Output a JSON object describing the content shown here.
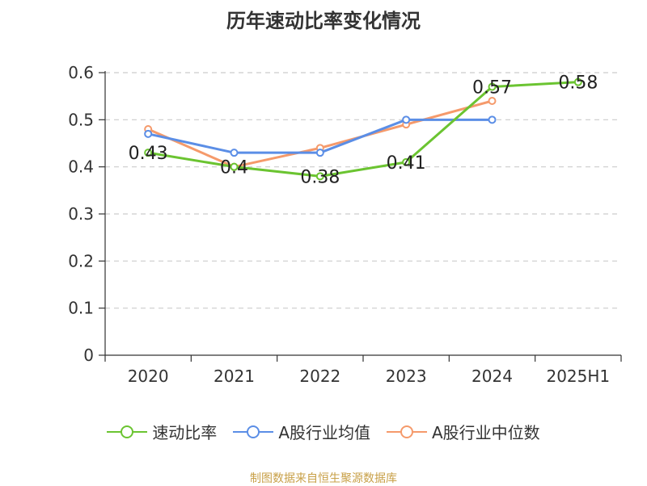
{
  "chart_data": {
    "type": "line",
    "title": "历年速动比率变化情况",
    "categories": [
      "2020",
      "2021",
      "2022",
      "2023",
      "2024",
      "2025H1"
    ],
    "ylim": [
      0,
      0.6
    ],
    "yticks": [
      "0",
      "0.1",
      "0.2",
      "0.3",
      "0.4",
      "0.5",
      "0.6"
    ],
    "grid": true,
    "legend_position": "bottom",
    "series": [
      {
        "name": "速动比率",
        "color": "#6bc431",
        "values": [
          0.43,
          0.4,
          0.38,
          0.41,
          0.57,
          0.58
        ],
        "labels": [
          "0.43",
          "0.4",
          "0.38",
          "0.41",
          "0.57",
          "0.58"
        ]
      },
      {
        "name": "A股行业均值",
        "color": "#5b8ee6",
        "values": [
          0.47,
          0.43,
          0.43,
          0.5,
          0.5,
          null
        ]
      },
      {
        "name": "A股行业中位数",
        "color": "#f59a6b",
        "values": [
          0.48,
          0.4,
          0.44,
          0.49,
          0.54,
          null
        ]
      }
    ]
  },
  "footer": {
    "source": "制图数据来自恒生聚源数据库"
  }
}
